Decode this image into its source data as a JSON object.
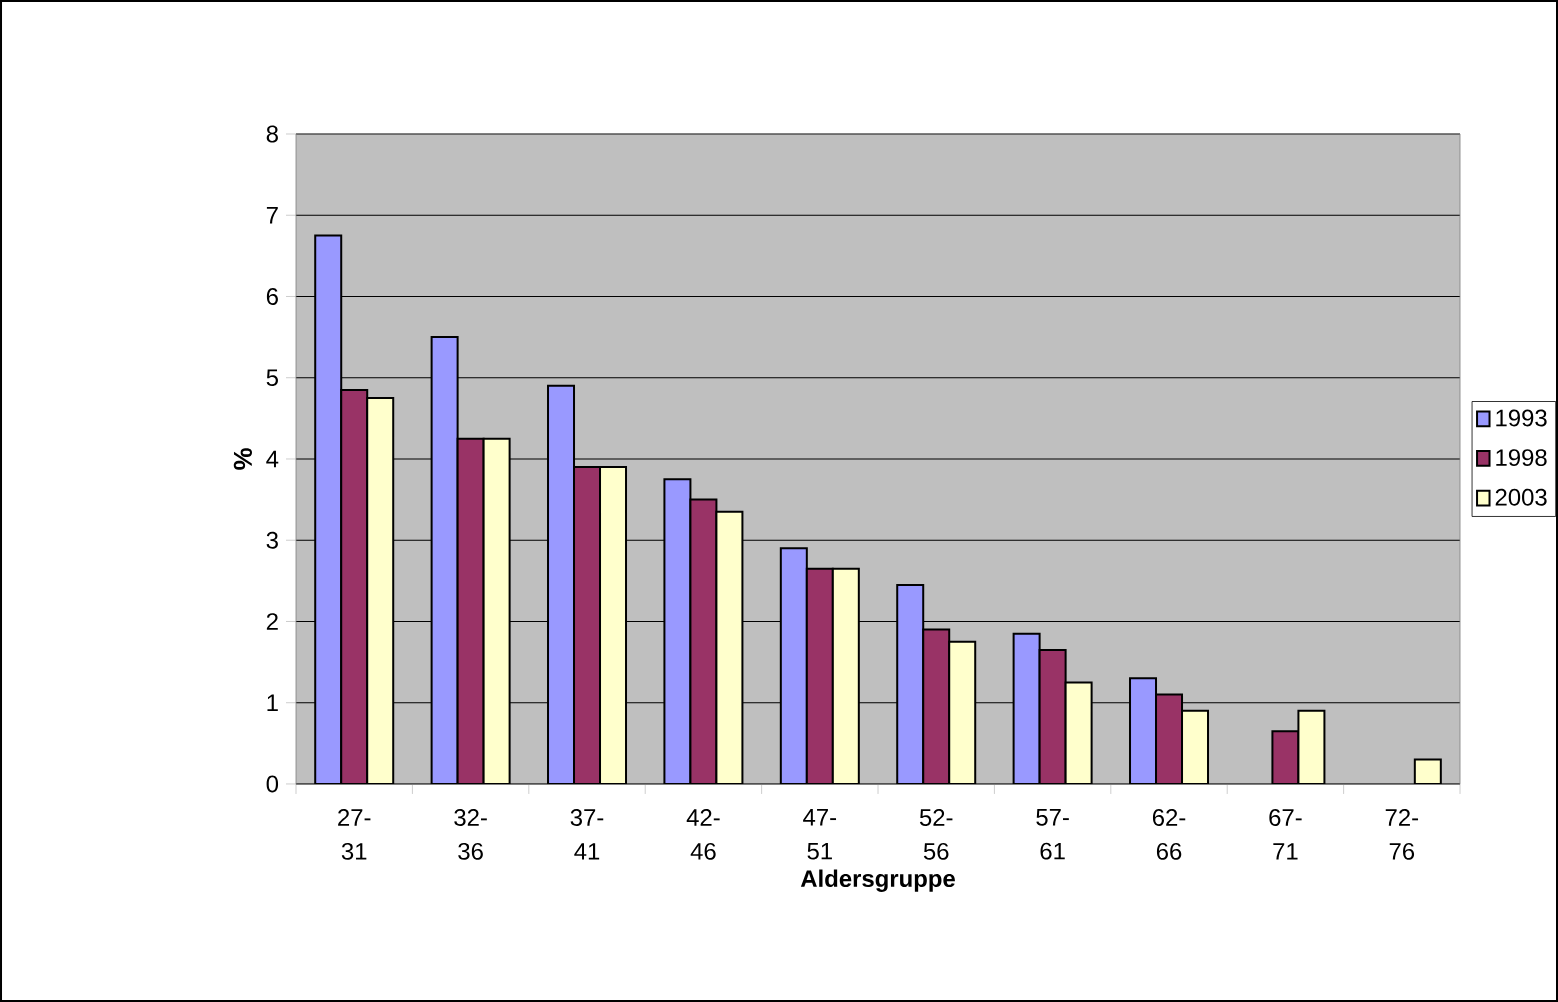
{
  "chart_data": {
    "type": "bar",
    "xlabel": "Aldersgruppe",
    "ylabel": "%",
    "categories": [
      "27-31",
      "32-36",
      "37-41",
      "42-46",
      "47-51",
      "52-56",
      "57-61",
      "62-66",
      "67-71",
      "72-76"
    ],
    "series": [
      {
        "name": "1993",
        "color": "#9999ff",
        "values": [
          6.75,
          5.5,
          4.9,
          3.75,
          2.9,
          2.45,
          1.85,
          1.3,
          null,
          null
        ]
      },
      {
        "name": "1998",
        "color": "#993366",
        "values": [
          4.85,
          4.25,
          3.9,
          3.5,
          2.65,
          1.9,
          1.65,
          1.1,
          0.65,
          null
        ]
      },
      {
        "name": "2003",
        "color": "#ffffcc",
        "values": [
          4.75,
          4.25,
          3.9,
          3.35,
          2.65,
          1.75,
          1.25,
          0.9,
          0.9,
          0.3
        ]
      }
    ],
    "ylim": [
      0,
      8
    ],
    "yticks": [
      0,
      1,
      2,
      3,
      4,
      5,
      6,
      7,
      8
    ],
    "grid": "y",
    "legend": "right"
  }
}
